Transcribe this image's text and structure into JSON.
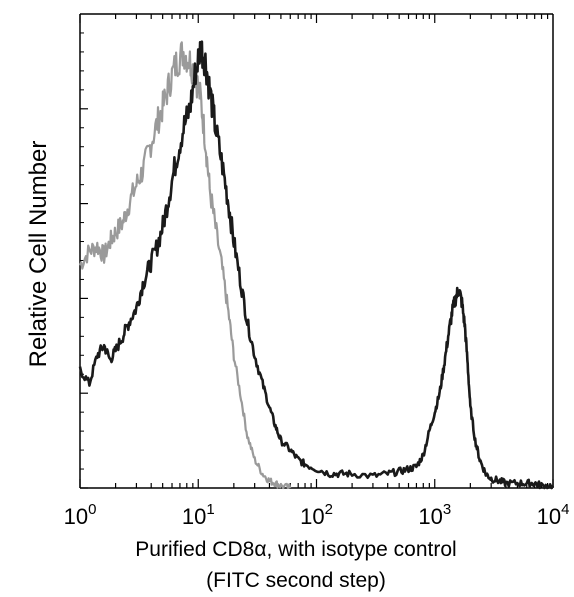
{
  "chart_data": {
    "type": "line",
    "title": "",
    "xlabel_line1": "Purified CD8α, with isotype control",
    "xlabel_line2": "(FITC second step)",
    "ylabel": "Relative Cell Number",
    "x_scale": "log",
    "xlim": [
      1,
      10000
    ],
    "ylim": [
      0,
      100
    ],
    "x_ticks": [
      {
        "base": "10",
        "exp": "0",
        "value": 1
      },
      {
        "base": "10",
        "exp": "1",
        "value": 10
      },
      {
        "base": "10",
        "exp": "2",
        "value": 100
      },
      {
        "base": "10",
        "exp": "3",
        "value": 1000
      },
      {
        "base": "10",
        "exp": "4",
        "value": 10000
      }
    ],
    "y_ticks": [
      0,
      20,
      40,
      60,
      80
    ],
    "grid": false,
    "legend": "none",
    "series": [
      {
        "color": "#1a1a1a",
        "x": [
          1.0,
          1.2,
          1.4,
          1.6,
          1.8,
          2.0,
          2.3,
          2.6,
          3.0,
          3.4,
          3.9,
          4.5,
          5.1,
          5.8,
          6.6,
          7.5,
          8.5,
          9.5,
          10.5,
          11.5,
          12.5,
          14,
          16,
          18,
          20,
          23,
          26,
          30,
          35,
          40,
          45,
          50,
          60,
          70,
          80,
          100,
          130,
          160,
          200,
          300,
          400,
          500,
          600,
          700,
          800,
          900,
          1000,
          1100,
          1200,
          1300,
          1400,
          1500,
          1600,
          1700,
          1800,
          1900,
          2000,
          2200,
          2400,
          2700,
          3000,
          3500,
          4000,
          5000,
          6000,
          7000,
          8000,
          10000
        ],
        "y": [
          25,
          22,
          28,
          30,
          27,
          29,
          32,
          35,
          38,
          43,
          47,
          51,
          56,
          63,
          70,
          76,
          80,
          88,
          93,
          90,
          84,
          76,
          68,
          60,
          52,
          43,
          35,
          28,
          22,
          17,
          13,
          10,
          8,
          6,
          5,
          4,
          3,
          3,
          3,
          2.5,
          3,
          3.5,
          4,
          4.5,
          7,
          12,
          16,
          20,
          26,
          32,
          37,
          40,
          42,
          39,
          34,
          26,
          17,
          10,
          6,
          3,
          2,
          1.5,
          1,
          1,
          1,
          1,
          0.5,
          0.5
        ]
      },
      {
        "color": "#9a9a9a",
        "x": [
          1.0,
          1.2,
          1.4,
          1.6,
          1.8,
          2.0,
          2.3,
          2.6,
          3.0,
          3.4,
          3.9,
          4.5,
          5.1,
          5.8,
          6.6,
          7.5,
          8.5,
          9.5,
          10.5,
          11.5,
          12.5,
          14,
          16,
          18,
          20,
          23,
          26,
          30,
          35,
          40,
          45,
          50,
          60
        ],
        "y": [
          47,
          50,
          51,
          49,
          52,
          54,
          56,
          60,
          64,
          67,
          72,
          77,
          81,
          86,
          90,
          92,
          90,
          87,
          82,
          73,
          63,
          55,
          46,
          37,
          28,
          19,
          11,
          6,
          3,
          1.5,
          1,
          0.5,
          0
        ]
      }
    ]
  }
}
